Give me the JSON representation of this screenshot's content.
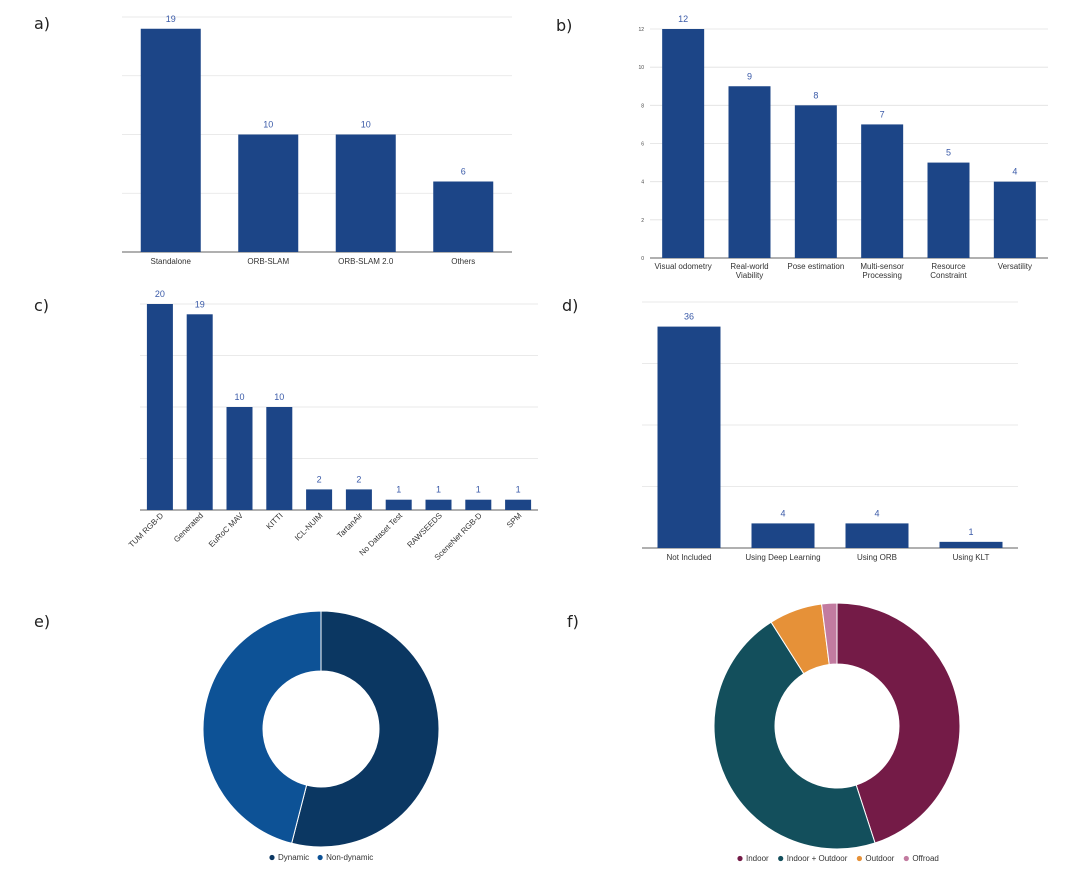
{
  "chart_data": [
    {
      "id": "a",
      "panel_label": "a)",
      "type": "bar",
      "categories": [
        "Standalone",
        "ORB-SLAM",
        "ORB-SLAM 2.0",
        "Others"
      ],
      "values": [
        19,
        10,
        10,
        6
      ],
      "ylim": [
        0,
        20
      ],
      "grid": true,
      "color": "#1c4587"
    },
    {
      "id": "b",
      "panel_label": "b)",
      "type": "bar",
      "categories": [
        [
          "Visual odometry"
        ],
        [
          "Real-world",
          "Viability"
        ],
        [
          "Pose estimation"
        ],
        [
          "Multi-sensor",
          "Processing"
        ],
        [
          "Resource",
          "Constraint"
        ],
        [
          "Versatility"
        ]
      ],
      "values": [
        12,
        9,
        8,
        7,
        5,
        4
      ],
      "ylim": [
        0,
        12
      ],
      "yticks": [
        0,
        2,
        4,
        6,
        8,
        10,
        12
      ],
      "grid": true,
      "color": "#1c4587"
    },
    {
      "id": "c",
      "panel_label": "c)",
      "type": "bar",
      "categories": [
        "TUM RGB-D",
        "Generated",
        "EuRoC MAV",
        "KITTI",
        "ICL-NUIM",
        "TartanAir",
        "No Dataset Test",
        "RAWSEEDS",
        "SceneNet RGB-D",
        "SPM"
      ],
      "values": [
        20,
        19,
        10,
        10,
        2,
        2,
        1,
        1,
        1,
        1
      ],
      "ylim": [
        0,
        20
      ],
      "grid": true,
      "rotated_labels": true,
      "color": "#1c4587"
    },
    {
      "id": "d",
      "panel_label": "d)",
      "type": "bar",
      "categories": [
        "Not Included",
        "Using Deep Learning",
        "Using ORB",
        "Using KLT"
      ],
      "values": [
        36,
        4,
        4,
        1
      ],
      "ylim": [
        0,
        40
      ],
      "grid": true,
      "color": "#1c4587"
    },
    {
      "id": "e",
      "panel_label": "e)",
      "type": "pie",
      "donut": true,
      "slices": [
        {
          "label": "Dynamic",
          "value": 54,
          "color": "#0b3762"
        },
        {
          "label": "Non-dynamic",
          "value": 46,
          "color": "#0d5296"
        }
      ],
      "legend": "bottom"
    },
    {
      "id": "f",
      "panel_label": "f)",
      "type": "pie",
      "donut": true,
      "slices": [
        {
          "label": "Indoor",
          "value": 45,
          "color": "#741b47"
        },
        {
          "label": "Indoor + Outdoor",
          "value": 46,
          "color": "#134f5c"
        },
        {
          "label": "Outdoor",
          "value": 7,
          "color": "#e69138"
        },
        {
          "label": "Offroad",
          "value": 2,
          "color": "#c27ba0"
        }
      ],
      "legend": "bottom"
    }
  ]
}
